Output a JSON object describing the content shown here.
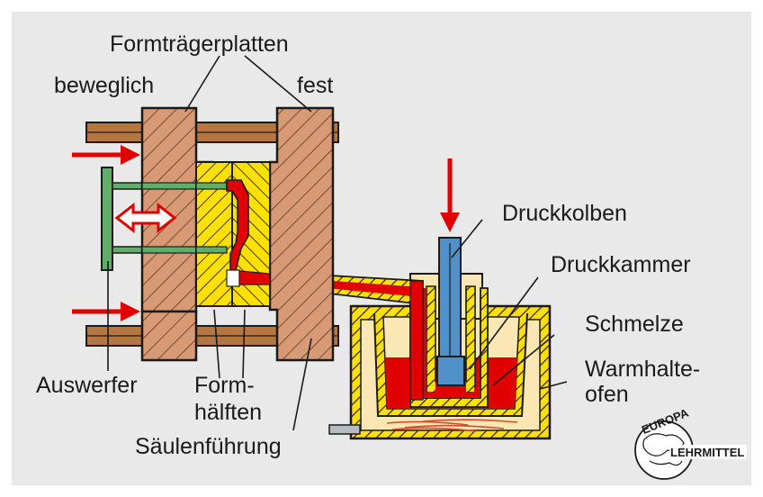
{
  "diagram": {
    "labels": {
      "formtraegerplatten": "Formträgerplatten",
      "beweglich": "beweglich",
      "fest": "fest",
      "druckkolben": "Druckkolben",
      "druckkammer": "Druckkammer",
      "schmelze": "Schmelze",
      "warmhalte_line1": "Warmhalte-",
      "warmhalte_line2": "ofen",
      "auswerfer": "Auswerfer",
      "form_line1": "Form-",
      "form_line2": "hälften",
      "saeulenfuehrung": "Säulenführung"
    },
    "logo": {
      "top": "EUROPA",
      "bottom": "LEHRMITTEL"
    },
    "colors": {
      "background": "#e9e9e9",
      "platen": "#d79a74",
      "tie_bar": "#b5773f",
      "mold_yellow": "#ffe000",
      "ejector_green": "#5fae6a",
      "molten_red": "#e00000",
      "plunger_blue": "#4f91c8",
      "furnace_cream": "#fbe7b4",
      "arrow_red": "#e00000"
    }
  }
}
